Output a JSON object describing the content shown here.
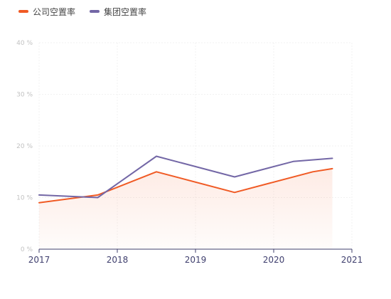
{
  "chart_data": {
    "type": "line",
    "title": "",
    "xlabel": "",
    "ylabel": "",
    "x_ticks": [
      "2017",
      "2018",
      "2019",
      "2020",
      "2021"
    ],
    "xlim": [
      2017,
      2021
    ],
    "y_ticks": [
      "0 %",
      "10 %",
      "20 %",
      "30 %",
      "40 %"
    ],
    "ylim": [
      0,
      40
    ],
    "y_tick_values": [
      0,
      10,
      20,
      30,
      40
    ],
    "grid": true,
    "legend_position": "top-left",
    "series": [
      {
        "name": "公司空置率",
        "color": "#f05a24",
        "area_fill": true,
        "points": [
          {
            "x": 2017.0,
            "y": 9.0
          },
          {
            "x": 2017.75,
            "y": 10.5
          },
          {
            "x": 2018.5,
            "y": 15.0
          },
          {
            "x": 2019.5,
            "y": 11.0
          },
          {
            "x": 2020.5,
            "y": 15.0
          },
          {
            "x": 2020.75,
            "y": 15.6
          }
        ]
      },
      {
        "name": "集团空置率",
        "color": "#7367a6",
        "area_fill": false,
        "points": [
          {
            "x": 2017.0,
            "y": 10.5
          },
          {
            "x": 2017.75,
            "y": 10.0
          },
          {
            "x": 2018.5,
            "y": 18.0
          },
          {
            "x": 2019.5,
            "y": 14.0
          },
          {
            "x": 2020.25,
            "y": 17.0
          },
          {
            "x": 2020.75,
            "y": 17.6
          }
        ]
      }
    ]
  }
}
